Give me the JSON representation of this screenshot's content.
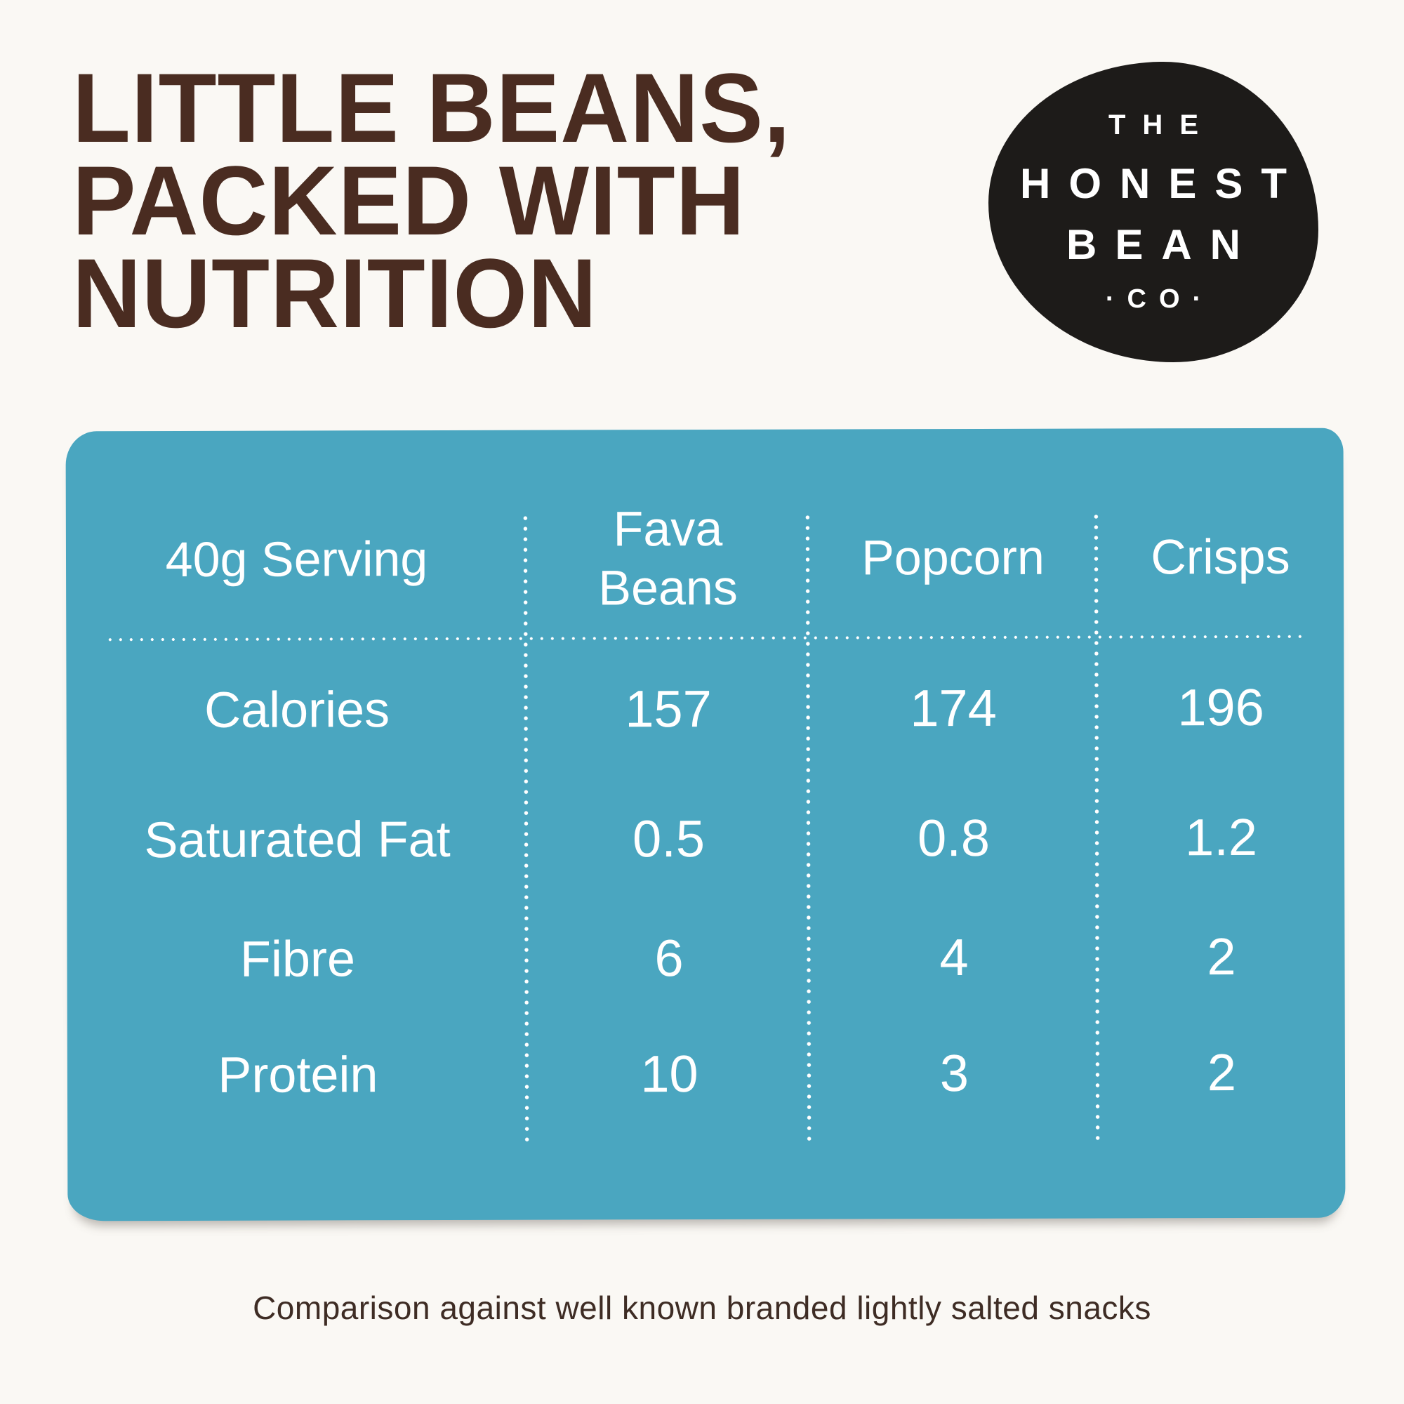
{
  "page": {
    "background_color": "#FAF8F4",
    "accent_teal": "#4AA6C0",
    "headline_brown": "#4A2C21",
    "logo_black": "#1D1B19",
    "table_text_color": "#FFFFFF"
  },
  "headline": {
    "lines": [
      "LITTLE BEANS,",
      "PACKED WITH",
      "NUTRITION"
    ]
  },
  "logo": {
    "lines": [
      "THE",
      "HONEST",
      "BEAN",
      "·CO·"
    ]
  },
  "chart_data": {
    "type": "table",
    "title": "Little beans, packed with nutrition",
    "columns": [
      "40g Serving",
      "Fava Beans",
      "Popcorn",
      "Crisps"
    ],
    "rows": [
      [
        "Calories",
        157,
        174,
        196
      ],
      [
        "Saturated Fat",
        0.5,
        0.8,
        1.2
      ],
      [
        "Fibre",
        6,
        4,
        2
      ],
      [
        "Protein",
        10,
        3,
        2
      ]
    ],
    "note": "Comparison against well known branded lightly salted snacks",
    "layout": {
      "grid": "dotted-dividers",
      "header_row": true,
      "text_align": "center"
    }
  },
  "footnote": {
    "text": "Comparison against well known branded lightly salted snacks"
  }
}
